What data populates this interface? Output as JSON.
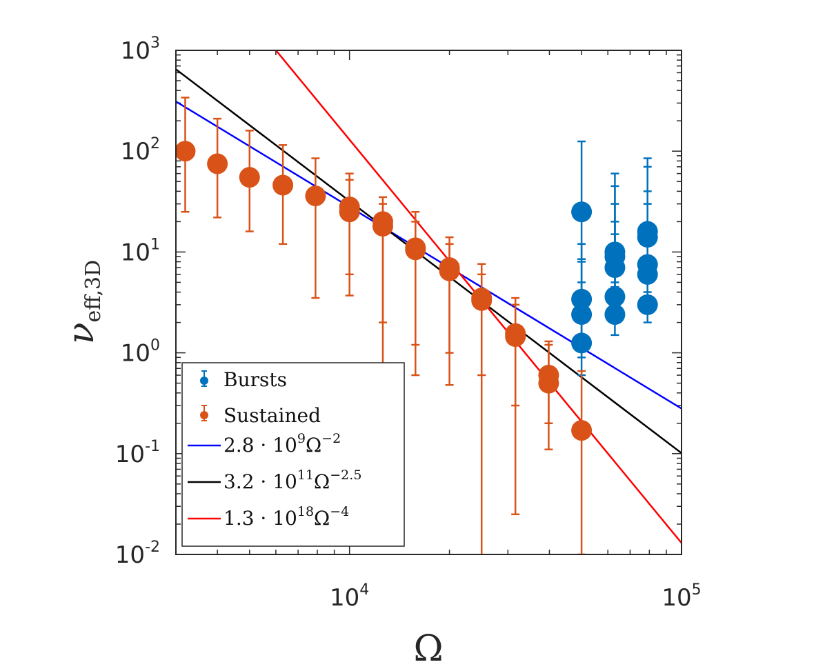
{
  "chart_data": {
    "type": "scatter",
    "scale": {
      "x": "log",
      "y": "log"
    },
    "xlim": [
      3000,
      100000
    ],
    "ylim": [
      0.01,
      1000
    ],
    "xlabel": "Ω",
    "ylabel": {
      "base": "ν",
      "subscript": "eff,3D"
    },
    "x_ticks": [
      {
        "base": "10",
        "exp": "4",
        "value": 10000
      },
      {
        "base": "10",
        "exp": "5",
        "value": 100000
      }
    ],
    "y_ticks": [
      {
        "base": "10",
        "exp": "-2",
        "value": 0.01
      },
      {
        "base": "10",
        "exp": "-1",
        "value": 0.1
      },
      {
        "base": "10",
        "exp": "0",
        "value": 1
      },
      {
        "base": "10",
        "exp": "1",
        "value": 10
      },
      {
        "base": "10",
        "exp": "2",
        "value": 100
      },
      {
        "base": "10",
        "exp": "3",
        "value": 1000
      }
    ],
    "colors": {
      "bursts": "#0072BD",
      "sustained": "#D95319",
      "fit1": "#0000ff",
      "fit2": "#000000",
      "fit3": "#ff0000"
    },
    "series": [
      {
        "name": "Bursts",
        "color": "#0072BD",
        "points": [
          {
            "x": 50000,
            "y": 25,
            "lo": 8.5,
            "hi": 125
          },
          {
            "x": 50000,
            "y": 3.4,
            "lo": 1.3,
            "hi": 12
          },
          {
            "x": 50000,
            "y": 2.4,
            "lo": 0.9,
            "hi": 8
          },
          {
            "x": 50000,
            "y": 1.25,
            "lo": 0.6,
            "hi": 5
          },
          {
            "x": 63000,
            "y": 10,
            "lo": 5,
            "hi": 60
          },
          {
            "x": 63000,
            "y": 9,
            "lo": 4.5,
            "hi": 45
          },
          {
            "x": 63000,
            "y": 7,
            "lo": 3.5,
            "hi": 30
          },
          {
            "x": 63000,
            "y": 3.6,
            "lo": 2,
            "hi": 20
          },
          {
            "x": 63000,
            "y": 2.4,
            "lo": 1.5,
            "hi": 15
          },
          {
            "x": 79000,
            "y": 16,
            "lo": 8,
            "hi": 85
          },
          {
            "x": 79000,
            "y": 14,
            "lo": 7,
            "hi": 70
          },
          {
            "x": 79000,
            "y": 7.5,
            "lo": 4,
            "hi": 40
          },
          {
            "x": 79000,
            "y": 6,
            "lo": 3,
            "hi": 30
          },
          {
            "x": 79000,
            "y": 3,
            "lo": 2,
            "hi": 15
          }
        ]
      },
      {
        "name": "Sustained",
        "color": "#D95319",
        "points": [
          {
            "x": 3200,
            "y": 100,
            "lo": 25,
            "hi": 340
          },
          {
            "x": 4000,
            "y": 75,
            "lo": 22,
            "hi": 210
          },
          {
            "x": 5000,
            "y": 55,
            "lo": 16,
            "hi": 160
          },
          {
            "x": 6300,
            "y": 46,
            "lo": 12,
            "hi": 115
          },
          {
            "x": 7900,
            "y": 36,
            "lo": 3.5,
            "hi": 85
          },
          {
            "x": 10000,
            "y": 28,
            "lo": 3.7,
            "hi": 60
          },
          {
            "x": 10000,
            "y": 25,
            "lo": 6,
            "hi": 52
          },
          {
            "x": 12600,
            "y": 20,
            "lo": 0.75,
            "hi": 35
          },
          {
            "x": 12600,
            "y": 18,
            "lo": 2,
            "hi": 30
          },
          {
            "x": 15800,
            "y": 11,
            "lo": 0.6,
            "hi": 25
          },
          {
            "x": 15800,
            "y": 10.5,
            "lo": 1.2,
            "hi": 20
          },
          {
            "x": 20000,
            "y": 7,
            "lo": 0.48,
            "hi": 14
          },
          {
            "x": 20000,
            "y": 6.5,
            "lo": 1,
            "hi": 12
          },
          {
            "x": 25000,
            "y": 3.5,
            "lo": 0.005,
            "hi": 7.6
          },
          {
            "x": 25000,
            "y": 3.3,
            "lo": 0.6,
            "hi": 6
          },
          {
            "x": 31600,
            "y": 1.55,
            "lo": 0.025,
            "hi": 3.5
          },
          {
            "x": 31600,
            "y": 1.45,
            "lo": 0.3,
            "hi": 3
          },
          {
            "x": 39800,
            "y": 0.6,
            "lo": 0.11,
            "hi": 1.3
          },
          {
            "x": 39800,
            "y": 0.5,
            "lo": 0.2,
            "hi": 1.2
          },
          {
            "x": 50000,
            "y": 0.17,
            "lo": 0.01,
            "hi": 0.66
          }
        ]
      }
    ],
    "fits": [
      {
        "label": {
          "coef": "2.8",
          "pow": "9",
          "exp": "−2"
        },
        "a": 2800000000,
        "p": -2,
        "color": "#0000ff"
      },
      {
        "label": {
          "coef": "3.2",
          "pow": "11",
          "exp": "−2.5"
        },
        "a": 320000000000,
        "p": -2.5,
        "color": "#000000"
      },
      {
        "label": {
          "coef": "1.3",
          "pow": "18",
          "exp": "−4"
        },
        "a": 1.3e+18,
        "p": -4,
        "color": "#ff0000"
      }
    ],
    "legend": {
      "location": "bottom-left",
      "entries": [
        "Bursts",
        "Sustained"
      ]
    }
  }
}
